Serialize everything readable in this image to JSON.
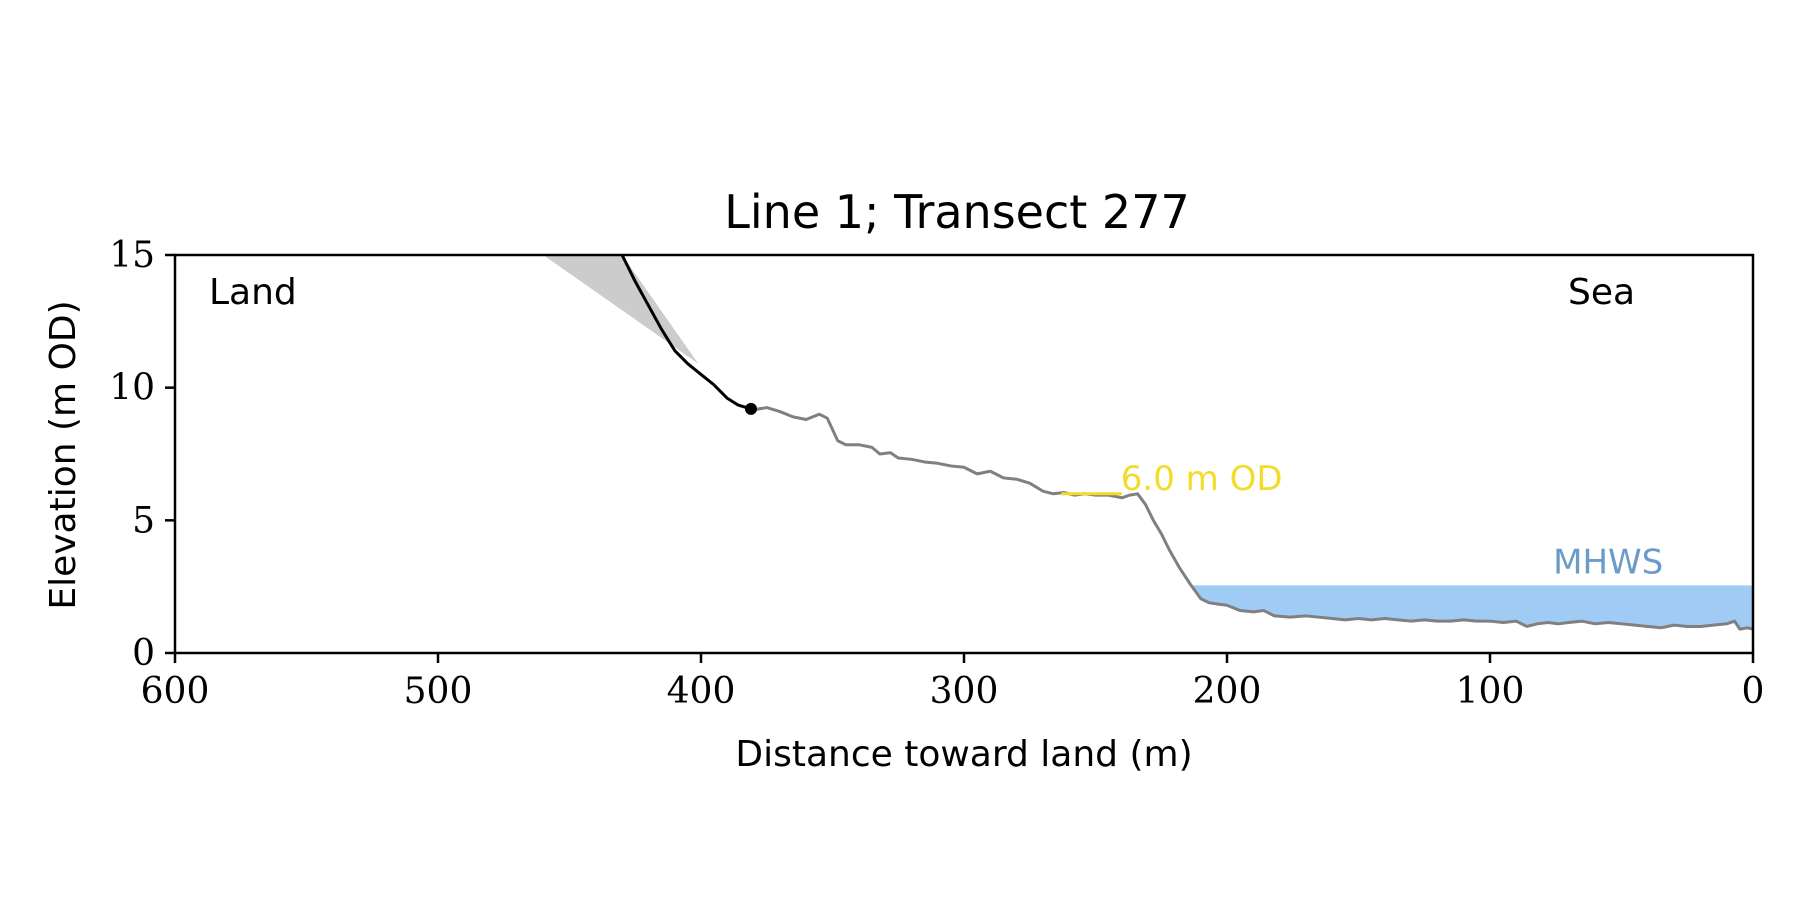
{
  "chart_data": {
    "type": "line",
    "title": "Line 1; Transect 277",
    "xlabel": "Distance toward land (m)",
    "ylabel": "Elevation (m OD)",
    "xlim": [
      600,
      0
    ],
    "ylim": [
      0,
      15
    ],
    "x_ticks": [
      600,
      500,
      400,
      300,
      200,
      100,
      0
    ],
    "y_ticks": [
      0,
      5,
      10,
      15
    ],
    "grid": false,
    "land_label": "Land",
    "sea_label": "Sea",
    "colors": {
      "profile": "#808080",
      "cliff": "#000000",
      "cliff_wedge": "#cccccc",
      "mhws_fill": "#a0cbf5",
      "mhws_text": "#6b9cc9",
      "od_line": "#f2dc2a"
    },
    "mhws": {
      "label": "MHWS",
      "elevation": 2.55
    },
    "od_marker": {
      "label": "6.0 m OD",
      "elevation": 6.0,
      "x_range": [
        263,
        240
      ]
    },
    "cliff_top_point": {
      "x": 381,
      "y": 9.2
    },
    "cliff_wedge": [
      [
        460,
        15
      ],
      [
        430,
        15
      ],
      [
        401,
        10.9
      ]
    ],
    "cliff_profile": {
      "x": [
        430,
        425,
        420,
        415,
        410,
        405,
        400,
        395,
        390,
        386,
        381
      ],
      "y": [
        15,
        14.0,
        13.1,
        12.2,
        11.4,
        10.9,
        10.5,
        10.1,
        9.6,
        9.35,
        9.2
      ]
    },
    "profile": {
      "x": [
        381,
        375,
        370,
        365,
        360,
        355,
        352,
        348,
        345,
        340,
        335,
        332,
        328,
        325,
        320,
        315,
        310,
        305,
        300,
        295,
        290,
        285,
        280,
        275,
        270,
        266,
        262,
        258,
        254,
        250,
        245,
        240,
        237,
        234,
        231,
        228,
        225,
        222,
        218,
        214,
        210,
        207,
        204,
        200,
        195,
        190,
        186,
        182,
        176,
        170,
        165,
        160,
        155,
        150,
        145,
        140,
        135,
        130,
        125,
        120,
        115,
        110,
        105,
        100,
        95,
        90,
        86,
        82,
        78,
        74,
        70,
        65,
        60,
        55,
        50,
        45,
        40,
        35,
        30,
        25,
        20,
        15,
        10,
        7,
        5,
        2,
        0
      ],
      "y": [
        9.15,
        9.25,
        9.1,
        8.9,
        8.8,
        9.0,
        8.85,
        8.0,
        7.85,
        7.85,
        7.75,
        7.5,
        7.55,
        7.35,
        7.3,
        7.2,
        7.15,
        7.05,
        7.0,
        6.75,
        6.85,
        6.6,
        6.55,
        6.4,
        6.1,
        6.0,
        6.05,
        5.95,
        6.0,
        5.95,
        5.95,
        5.85,
        5.95,
        6.0,
        5.6,
        5.0,
        4.5,
        3.9,
        3.2,
        2.6,
        2.05,
        1.9,
        1.85,
        1.8,
        1.6,
        1.55,
        1.6,
        1.4,
        1.35,
        1.4,
        1.35,
        1.3,
        1.25,
        1.3,
        1.25,
        1.3,
        1.25,
        1.2,
        1.25,
        1.2,
        1.2,
        1.25,
        1.2,
        1.2,
        1.15,
        1.2,
        1.0,
        1.1,
        1.15,
        1.1,
        1.15,
        1.2,
        1.1,
        1.15,
        1.1,
        1.05,
        1.0,
        0.95,
        1.05,
        1.0,
        1.0,
        1.05,
        1.1,
        1.2,
        0.9,
        0.95,
        0.9
      ]
    }
  }
}
